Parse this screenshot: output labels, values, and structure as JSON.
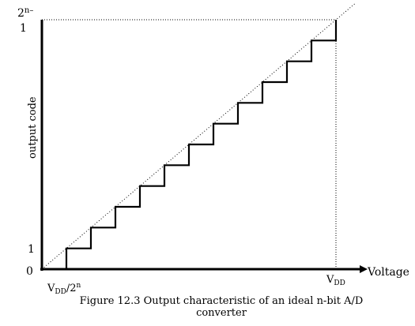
{
  "chart_data": {
    "type": "line",
    "title": "",
    "xlabel": "Voltage",
    "ylabel": "output code",
    "xlim": [
      0,
      1
    ],
    "ylim": [
      0,
      1
    ],
    "grid": false,
    "legend": "none",
    "x_tick_labels": {
      "lsb": {
        "base": "V",
        "sub": "DD",
        "rest": "/2",
        "sup": "n"
      },
      "full": {
        "base": "V",
        "sub": "DD"
      }
    },
    "y_tick_labels": {
      "zero": "0",
      "one": "1",
      "top_sup": "2",
      "top_exp": "n",
      "top_minus": "–",
      "top_one": "1"
    },
    "series": [
      {
        "style": "staircase",
        "x": [
          0.0833,
          0.0833,
          0.1667,
          0.1667,
          0.25,
          0.25,
          0.3333,
          0.3333,
          0.4167,
          0.4167,
          0.5,
          0.5,
          0.5833,
          0.5833,
          0.6667,
          0.6667,
          0.75,
          0.75,
          0.8333,
          0.8333,
          0.9167,
          0.9167,
          1.0,
          1.0
        ],
        "y": [
          0,
          0.0833,
          0.0833,
          0.1667,
          0.1667,
          0.25,
          0.25,
          0.3333,
          0.3333,
          0.4167,
          0.4167,
          0.5,
          0.5,
          0.5833,
          0.5833,
          0.6667,
          0.6667,
          0.75,
          0.75,
          0.8333,
          0.8333,
          0.9167,
          0.9167,
          1.0
        ]
      },
      {
        "style": "dotted-ideal",
        "x": [
          0.0,
          1.065
        ],
        "y": [
          0.0,
          1.065
        ]
      }
    ]
  },
  "caption": {
    "line1": "Figure 12.3 Output characteristic of an ideal n-bit A/D",
    "line2": "converter"
  }
}
